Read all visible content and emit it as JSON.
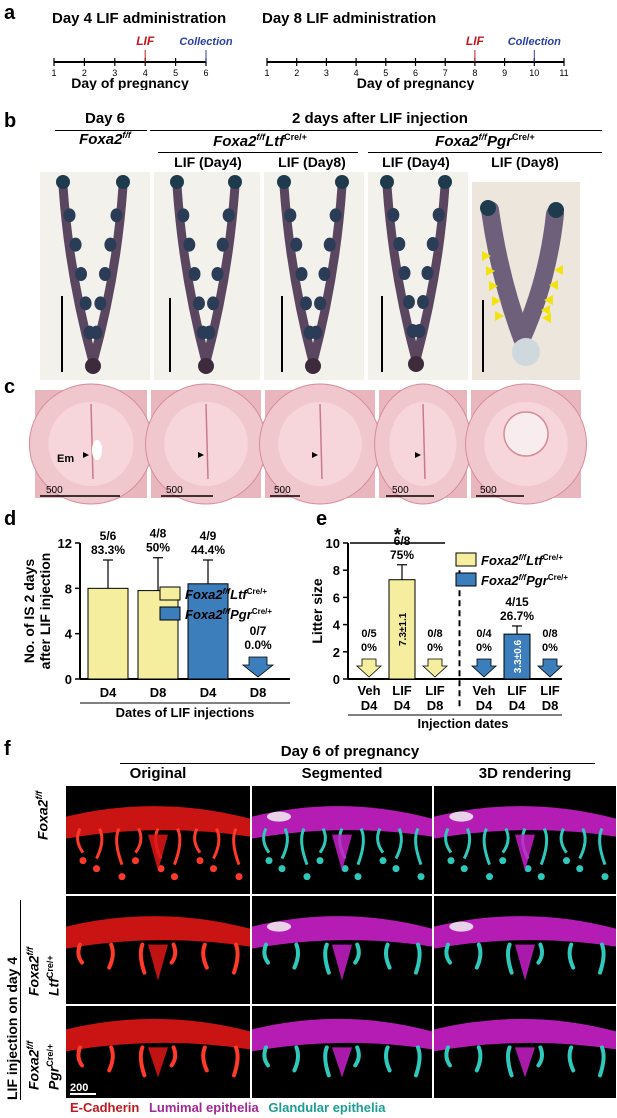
{
  "panels": {
    "a": "a",
    "b": "b",
    "c": "c",
    "d": "d",
    "e": "e",
    "f": "f"
  },
  "panel_a": {
    "left": {
      "title": "Day 4 LIF administration",
      "lif": "LIF",
      "collection": "Collection",
      "xlabel": "Day of pregnancy",
      "ticks": [
        "1",
        "2",
        "3",
        "4",
        "5",
        "6"
      ]
    },
    "right": {
      "title": "Day 8 LIF administration",
      "lif": "LIF",
      "collection": "Collection",
      "xlabel": "Day of pregnancy",
      "ticks": [
        "1",
        "2",
        "3",
        "4",
        "5",
        "6",
        "7",
        "8",
        "9",
        "10",
        "11"
      ]
    }
  },
  "panel_b": {
    "day6": "Day 6",
    "genotype_ctrl": "Foxa2",
    "genotype_ctrl_sup": "f/f",
    "header": "2 days after LIF injection",
    "geno_ltf_main": "Foxa2",
    "geno_ltf_sup1": "f/f",
    "geno_ltf_name": "Ltf",
    "geno_ltf_sup2": "Cre/+",
    "geno_pgr_main": "Foxa2",
    "geno_pgr_sup1": "f/f",
    "geno_pgr_name": "Pgr",
    "geno_pgr_sup2": "Cre/+",
    "columns": [
      "LIF (Day4)",
      "LIF (Day8)",
      "LIF (Day4)",
      "LIF (Day8)"
    ]
  },
  "panel_c": {
    "em": "Em",
    "scale": [
      "500",
      "500",
      "500",
      "500",
      "500"
    ]
  },
  "panel_d": {
    "ylabel_line1": "No. of  IS 2 days",
    "ylabel_line2": "after LIF injection",
    "xlabel": "Dates of LIF injections",
    "legend": [
      {
        "main": "Foxa2",
        "sup1": "f/f",
        "name": "Ltf",
        "sup2": "Cre/+",
        "color": "#f5ee9e"
      },
      {
        "main": "Foxa2",
        "sup1": "f/f",
        "name": "Pgr",
        "sup2": "Cre/+",
        "color": "#3c7dbb"
      }
    ]
  },
  "panel_e": {
    "ylabel": "Litter size",
    "xlabel": "Injection dates",
    "star": "*",
    "legend": [
      {
        "main": "Foxa2",
        "sup1": "f/f",
        "name": "Ltf",
        "sup2": "Cre/+",
        "color": "#f5ee9e"
      },
      {
        "main": "Foxa2",
        "sup1": "f/f",
        "name": "Pgr",
        "sup2": "Cre/+",
        "color": "#3c7dbb"
      }
    ]
  },
  "panel_f": {
    "title": "Day 6 of pregnancy",
    "columns": [
      "Original",
      "Segmented",
      "3D rendering"
    ],
    "row_ctrl": "Foxa2",
    "row_ctrl_sup": "f/f",
    "side_label": "LIF injection on day 4",
    "row_ltf_l1": "Foxa2",
    "row_ltf_l1_sup": "f/f",
    "row_ltf_l2": "Ltf",
    "row_ltf_l2_sup": "Cre/+",
    "row_pgr_l1": "Foxa2",
    "row_pgr_l1_sup": "f/f",
    "row_pgr_l2": "Pgr",
    "row_pgr_l2_sup": "Cre/+",
    "scale": "200",
    "legend": [
      {
        "text": "E-Cadherin",
        "color": "#c0191e"
      },
      {
        "text": "Lumimal epithelia",
        "color": "#a0289a"
      },
      {
        "text": "Glandular epithelia",
        "color": "#1a9e96"
      }
    ]
  },
  "chart_data": [
    {
      "type": "bar",
      "panel": "d",
      "categories": [
        "D4",
        "D8",
        "D4",
        "D8"
      ],
      "series": [
        {
          "values": [
            8.0,
            7.8,
            8.4,
            0.0
          ],
          "errors": [
            2.5,
            2.9,
            2.1,
            0
          ],
          "colors": [
            "#f5ee9e",
            "#f5ee9e",
            "#3c7dbb",
            "#3c7dbb"
          ]
        }
      ],
      "annotations": [
        [
          "5/6",
          "83.3%"
        ],
        [
          "4/8",
          "50%"
        ],
        [
          "4/9",
          "44.4%"
        ],
        [
          "0/7",
          "0.0%"
        ]
      ],
      "ylim": [
        0,
        12
      ],
      "yticks": [
        "0",
        "4",
        "8",
        "12"
      ],
      "grid": false
    },
    {
      "type": "bar",
      "panel": "e",
      "categories": [
        [
          "Veh",
          "D4"
        ],
        [
          "LIF",
          "D4"
        ],
        [
          "LIF",
          "D8"
        ],
        [
          "Veh",
          "D4"
        ],
        [
          "LIF",
          "D4"
        ],
        [
          "LIF",
          "D8"
        ]
      ],
      "series": [
        {
          "values": [
            0,
            7.3,
            0,
            0,
            3.3,
            0
          ],
          "errors": [
            0,
            1.1,
            0,
            0,
            0.6,
            0
          ],
          "colors": [
            "#f5ee9e",
            "#f5ee9e",
            "#f5ee9e",
            "#3c7dbb",
            "#3c7dbb",
            "#3c7dbb"
          ]
        }
      ],
      "annotations": [
        [
          "0/5",
          "0%"
        ],
        [
          "6/8",
          "75%"
        ],
        [
          "0/8",
          "0%"
        ],
        [
          "0/4",
          "0%"
        ],
        [
          "4/15",
          "26.7%"
        ],
        [
          "0/8",
          "0%"
        ]
      ],
      "bar_labels": [
        "",
        "7.3±1.1",
        "",
        "",
        "3.3±0.6",
        ""
      ],
      "ylim": [
        0,
        10
      ],
      "yticks": [
        "0",
        "2",
        "4",
        "6",
        "8",
        "10"
      ],
      "grid": false
    }
  ]
}
